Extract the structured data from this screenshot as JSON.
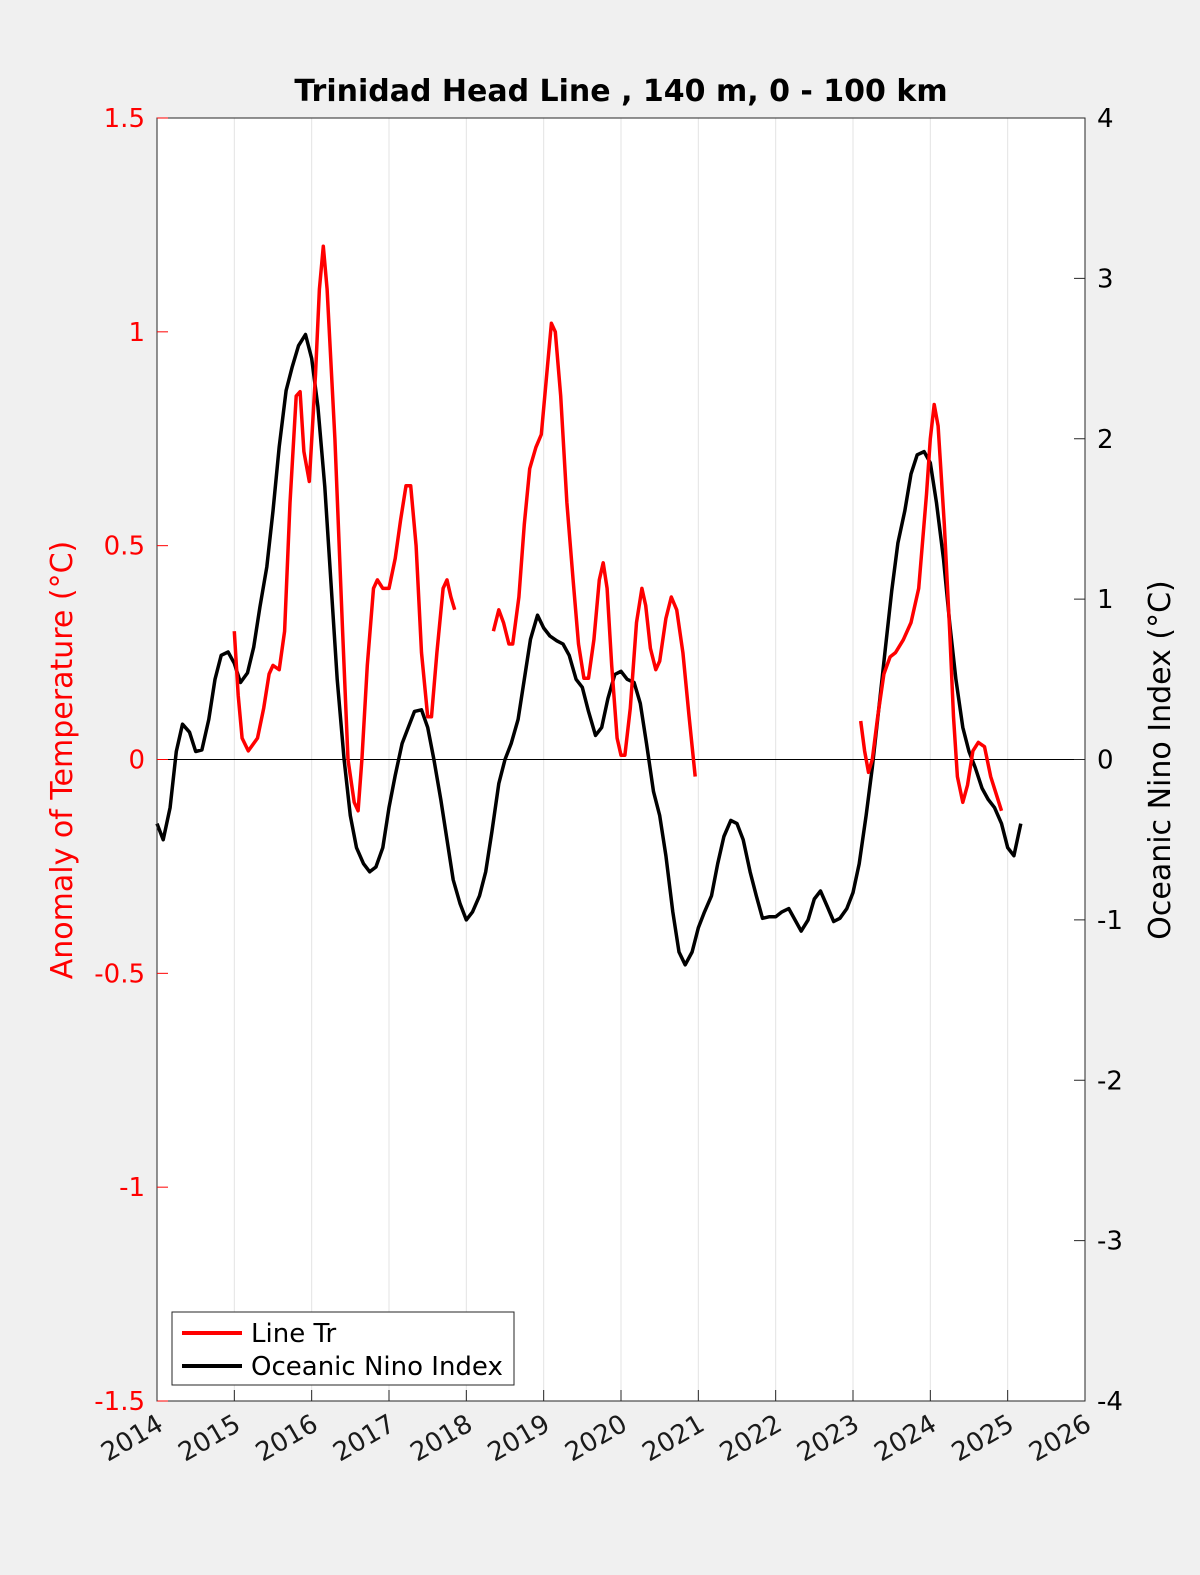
{
  "chart_data": {
    "type": "line",
    "title": "Trinidad Head Line , 140 m, 0 - 100 km",
    "ylabel_left": "Anomaly of Temperature (°C)",
    "ylabel_right": "Oceanic Nino Index (°C)",
    "xlabel": "",
    "xlim": [
      2014,
      2026
    ],
    "ylim_left": [
      -1.5,
      1.5
    ],
    "ylim_right": [
      -4,
      4
    ],
    "x_ticks": [
      "2014",
      "2015",
      "2016",
      "2017",
      "2018",
      "2019",
      "2020",
      "2021",
      "2022",
      "2023",
      "2024",
      "2025",
      "2026"
    ],
    "y_ticks_left": [
      "1.5",
      "1",
      "0.5",
      "0",
      "-0.5",
      "-1",
      "-1.5"
    ],
    "y_ticks_right": [
      "4",
      "3",
      "2",
      "1",
      "0",
      "-1",
      "-2",
      "-3",
      "-4"
    ],
    "grid": "vertical",
    "legend_position": "bottom-left",
    "colors": {
      "line_tr": "#ff0000",
      "oni": "#000000",
      "zero_line": "#000000"
    },
    "series": [
      {
        "name": "Line Tr",
        "axis": "left",
        "segments": [
          [
            [
              2015.0,
              0.3
            ],
            [
              2015.05,
              0.15
            ],
            [
              2015.1,
              0.05
            ],
            [
              2015.18,
              0.02
            ],
            [
              2015.3,
              0.05
            ],
            [
              2015.38,
              0.12
            ],
            [
              2015.45,
              0.2
            ],
            [
              2015.5,
              0.22
            ],
            [
              2015.58,
              0.21
            ],
            [
              2015.65,
              0.3
            ],
            [
              2015.72,
              0.6
            ],
            [
              2015.8,
              0.85
            ],
            [
              2015.85,
              0.86
            ],
            [
              2015.9,
              0.72
            ],
            [
              2015.97,
              0.65
            ],
            [
              2016.05,
              0.9
            ],
            [
              2016.1,
              1.1
            ],
            [
              2016.15,
              1.2
            ],
            [
              2016.2,
              1.1
            ],
            [
              2016.3,
              0.75
            ],
            [
              2016.4,
              0.3
            ],
            [
              2016.47,
              0.0
            ],
            [
              2016.55,
              -0.1
            ],
            [
              2016.6,
              -0.12
            ],
            [
              2016.65,
              0.0
            ],
            [
              2016.72,
              0.22
            ],
            [
              2016.8,
              0.4
            ],
            [
              2016.85,
              0.42
            ],
            [
              2016.92,
              0.4
            ],
            [
              2017.0,
              0.4
            ],
            [
              2017.08,
              0.47
            ],
            [
              2017.15,
              0.56
            ],
            [
              2017.22,
              0.64
            ],
            [
              2017.28,
              0.64
            ],
            [
              2017.35,
              0.5
            ],
            [
              2017.42,
              0.25
            ],
            [
              2017.5,
              0.1
            ],
            [
              2017.55,
              0.1
            ],
            [
              2017.62,
              0.25
            ],
            [
              2017.7,
              0.4
            ],
            [
              2017.75,
              0.42
            ],
            [
              2017.8,
              0.38
            ],
            [
              2017.85,
              0.35
            ]
          ],
          [
            [
              2018.35,
              0.3
            ],
            [
              2018.42,
              0.35
            ],
            [
              2018.48,
              0.32
            ],
            [
              2018.55,
              0.27
            ],
            [
              2018.6,
              0.27
            ],
            [
              2018.68,
              0.38
            ],
            [
              2018.75,
              0.55
            ],
            [
              2018.82,
              0.68
            ],
            [
              2018.9,
              0.73
            ],
            [
              2018.97,
              0.76
            ],
            [
              2019.05,
              0.92
            ],
            [
              2019.1,
              1.02
            ],
            [
              2019.15,
              1.0
            ],
            [
              2019.22,
              0.85
            ],
            [
              2019.3,
              0.6
            ],
            [
              2019.38,
              0.42
            ],
            [
              2019.45,
              0.27
            ],
            [
              2019.52,
              0.19
            ],
            [
              2019.58,
              0.19
            ],
            [
              2019.65,
              0.28
            ],
            [
              2019.72,
              0.42
            ],
            [
              2019.77,
              0.46
            ],
            [
              2019.82,
              0.4
            ],
            [
              2019.88,
              0.22
            ],
            [
              2019.95,
              0.05
            ],
            [
              2020.0,
              0.01
            ],
            [
              2020.05,
              0.01
            ],
            [
              2020.12,
              0.12
            ],
            [
              2020.2,
              0.32
            ],
            [
              2020.27,
              0.4
            ],
            [
              2020.32,
              0.36
            ],
            [
              2020.38,
              0.26
            ],
            [
              2020.45,
              0.21
            ],
            [
              2020.5,
              0.23
            ],
            [
              2020.58,
              0.33
            ],
            [
              2020.65,
              0.38
            ],
            [
              2020.72,
              0.35
            ],
            [
              2020.8,
              0.25
            ],
            [
              2020.88,
              0.1
            ],
            [
              2020.96,
              -0.04
            ]
          ],
          [
            [
              2023.1,
              0.09
            ],
            [
              2023.15,
              0.02
            ],
            [
              2023.2,
              -0.03
            ],
            [
              2023.25,
              0.0
            ],
            [
              2023.32,
              0.1
            ],
            [
              2023.4,
              0.2
            ],
            [
              2023.48,
              0.24
            ],
            [
              2023.55,
              0.25
            ],
            [
              2023.65,
              0.28
            ],
            [
              2023.75,
              0.32
            ],
            [
              2023.85,
              0.4
            ],
            [
              2023.95,
              0.62
            ],
            [
              2024.0,
              0.75
            ],
            [
              2024.05,
              0.83
            ],
            [
              2024.1,
              0.78
            ],
            [
              2024.18,
              0.55
            ],
            [
              2024.25,
              0.3
            ],
            [
              2024.3,
              0.1
            ],
            [
              2024.35,
              -0.04
            ],
            [
              2024.42,
              -0.1
            ],
            [
              2024.48,
              -0.06
            ],
            [
              2024.55,
              0.02
            ],
            [
              2024.62,
              0.04
            ],
            [
              2024.7,
              0.03
            ],
            [
              2024.78,
              -0.04
            ],
            [
              2024.85,
              -0.08
            ],
            [
              2024.92,
              -0.12
            ]
          ]
        ]
      },
      {
        "name": "Oceanic Nino Index",
        "axis": "right",
        "points": [
          [
            2014.0,
            -0.4
          ],
          [
            2014.08,
            -0.5
          ],
          [
            2014.17,
            -0.3
          ],
          [
            2014.25,
            0.05
          ],
          [
            2014.33,
            0.22
          ],
          [
            2014.42,
            0.17
          ],
          [
            2014.5,
            0.05
          ],
          [
            2014.58,
            0.06
          ],
          [
            2014.67,
            0.25
          ],
          [
            2014.75,
            0.5
          ],
          [
            2014.83,
            0.65
          ],
          [
            2014.92,
            0.67
          ],
          [
            2015.0,
            0.6
          ],
          [
            2015.08,
            0.48
          ],
          [
            2015.17,
            0.54
          ],
          [
            2015.25,
            0.7
          ],
          [
            2015.33,
            0.95
          ],
          [
            2015.42,
            1.2
          ],
          [
            2015.5,
            1.55
          ],
          [
            2015.58,
            1.95
          ],
          [
            2015.67,
            2.3
          ],
          [
            2015.75,
            2.45
          ],
          [
            2015.83,
            2.58
          ],
          [
            2015.92,
            2.65
          ],
          [
            2016.0,
            2.5
          ],
          [
            2016.08,
            2.2
          ],
          [
            2016.17,
            1.7
          ],
          [
            2016.25,
            1.1
          ],
          [
            2016.33,
            0.5
          ],
          [
            2016.42,
            0.0
          ],
          [
            2016.5,
            -0.35
          ],
          [
            2016.58,
            -0.55
          ],
          [
            2016.67,
            -0.65
          ],
          [
            2016.75,
            -0.7
          ],
          [
            2016.83,
            -0.67
          ],
          [
            2016.92,
            -0.55
          ],
          [
            2017.0,
            -0.3
          ],
          [
            2017.08,
            -0.1
          ],
          [
            2017.17,
            0.1
          ],
          [
            2017.25,
            0.2
          ],
          [
            2017.33,
            0.3
          ],
          [
            2017.42,
            0.31
          ],
          [
            2017.5,
            0.2
          ],
          [
            2017.58,
            0.0
          ],
          [
            2017.67,
            -0.25
          ],
          [
            2017.75,
            -0.5
          ],
          [
            2017.83,
            -0.75
          ],
          [
            2017.92,
            -0.9
          ],
          [
            2018.0,
            -1.0
          ],
          [
            2018.08,
            -0.95
          ],
          [
            2018.17,
            -0.85
          ],
          [
            2018.25,
            -0.7
          ],
          [
            2018.33,
            -0.45
          ],
          [
            2018.42,
            -0.15
          ],
          [
            2018.5,
            0.0
          ],
          [
            2018.58,
            0.1
          ],
          [
            2018.67,
            0.25
          ],
          [
            2018.75,
            0.5
          ],
          [
            2018.83,
            0.75
          ],
          [
            2018.92,
            0.9
          ],
          [
            2019.0,
            0.82
          ],
          [
            2019.08,
            0.77
          ],
          [
            2019.17,
            0.74
          ],
          [
            2019.25,
            0.72
          ],
          [
            2019.33,
            0.65
          ],
          [
            2019.42,
            0.5
          ],
          [
            2019.5,
            0.45
          ],
          [
            2019.58,
            0.3
          ],
          [
            2019.67,
            0.15
          ],
          [
            2019.75,
            0.2
          ],
          [
            2019.83,
            0.38
          ],
          [
            2019.92,
            0.53
          ],
          [
            2020.0,
            0.55
          ],
          [
            2020.08,
            0.5
          ],
          [
            2020.17,
            0.48
          ],
          [
            2020.25,
            0.35
          ],
          [
            2020.33,
            0.1
          ],
          [
            2020.42,
            -0.2
          ],
          [
            2020.5,
            -0.35
          ],
          [
            2020.58,
            -0.6
          ],
          [
            2020.67,
            -0.95
          ],
          [
            2020.75,
            -1.2
          ],
          [
            2020.83,
            -1.28
          ],
          [
            2020.92,
            -1.2
          ],
          [
            2021.0,
            -1.05
          ],
          [
            2021.08,
            -0.95
          ],
          [
            2021.17,
            -0.85
          ],
          [
            2021.25,
            -0.65
          ],
          [
            2021.33,
            -0.48
          ],
          [
            2021.42,
            -0.38
          ],
          [
            2021.5,
            -0.4
          ],
          [
            2021.58,
            -0.5
          ],
          [
            2021.67,
            -0.7
          ],
          [
            2021.75,
            -0.85
          ],
          [
            2021.83,
            -0.99
          ],
          [
            2021.92,
            -0.98
          ],
          [
            2022.0,
            -0.98
          ],
          [
            2022.08,
            -0.95
          ],
          [
            2022.17,
            -0.93
          ],
          [
            2022.25,
            -1.0
          ],
          [
            2022.33,
            -1.07
          ],
          [
            2022.42,
            -1.0
          ],
          [
            2022.5,
            -0.87
          ],
          [
            2022.58,
            -0.82
          ],
          [
            2022.67,
            -0.92
          ],
          [
            2022.75,
            -1.01
          ],
          [
            2022.83,
            -0.99
          ],
          [
            2022.92,
            -0.93
          ],
          [
            2023.0,
            -0.83
          ],
          [
            2023.08,
            -0.65
          ],
          [
            2023.17,
            -0.35
          ],
          [
            2023.25,
            -0.05
          ],
          [
            2023.33,
            0.3
          ],
          [
            2023.42,
            0.7
          ],
          [
            2023.5,
            1.05
          ],
          [
            2023.58,
            1.35
          ],
          [
            2023.67,
            1.55
          ],
          [
            2023.75,
            1.78
          ],
          [
            2023.83,
            1.9
          ],
          [
            2023.92,
            1.92
          ],
          [
            2024.0,
            1.85
          ],
          [
            2024.08,
            1.6
          ],
          [
            2024.17,
            1.25
          ],
          [
            2024.25,
            0.85
          ],
          [
            2024.33,
            0.5
          ],
          [
            2024.42,
            0.2
          ],
          [
            2024.5,
            0.05
          ],
          [
            2024.58,
            -0.05
          ],
          [
            2024.67,
            -0.18
          ],
          [
            2024.75,
            -0.25
          ],
          [
            2024.83,
            -0.3
          ],
          [
            2024.92,
            -0.4
          ],
          [
            2025.0,
            -0.55
          ],
          [
            2025.08,
            -0.6
          ],
          [
            2025.17,
            -0.4
          ]
        ]
      }
    ]
  }
}
